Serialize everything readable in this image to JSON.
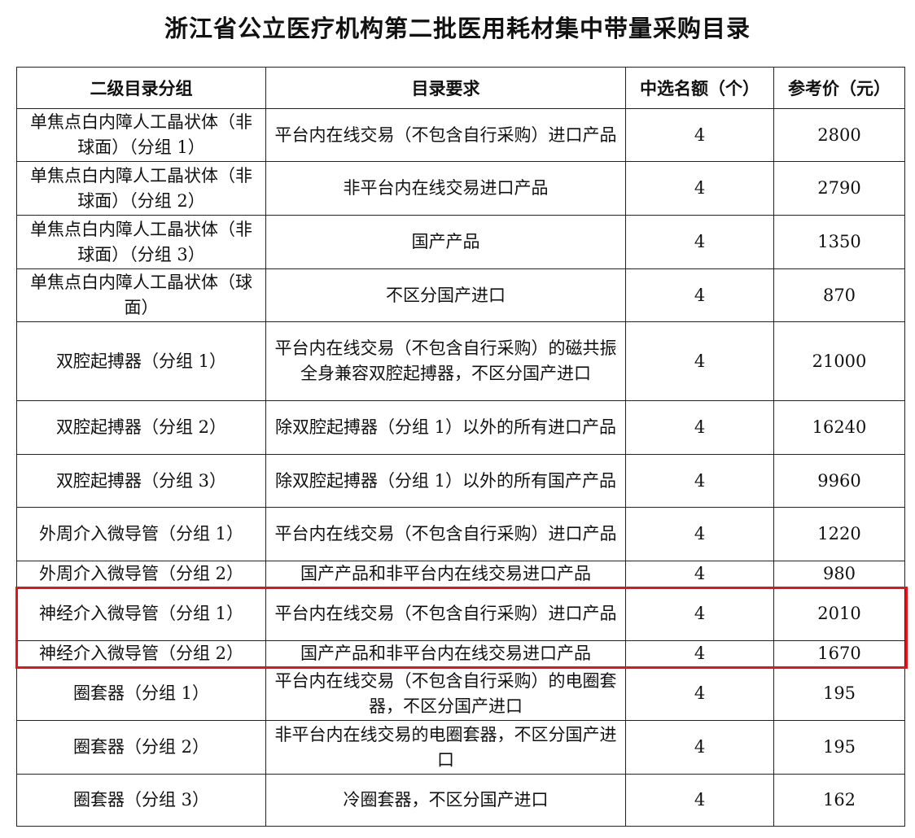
{
  "title": "浙江省公立医疗机构第二批医用耗材集中带量采购目录",
  "table": {
    "headers": [
      "二级目录分组",
      "目录要求",
      "中选名额（个）",
      "参考价（元）"
    ],
    "rows": [
      [
        "单焦点白内障人工晶状体（非球面）（分组 1）",
        "平台内在线交易（不包含自行采购）进口产品",
        "4",
        "2800"
      ],
      [
        "单焦点白内障人工晶状体（非球面）（分组 2）",
        "非平台内在线交易进口产品",
        "4",
        "2790"
      ],
      [
        "单焦点白内障人工晶状体（非球面）（分组 3）",
        "国产产品",
        "4",
        "1350"
      ],
      [
        "单焦点白内障人工晶状体（球面）",
        "不区分国产进口",
        "4",
        "870"
      ],
      [
        "双腔起搏器（分组 1）",
        "平台内在线交易（不包含自行采购）的磁共振全身兼容双腔起搏器，不区分国产进口",
        "4",
        "21000"
      ],
      [
        "双腔起搏器（分组 2）",
        "除双腔起搏器（分组 1）以外的所有进口产品",
        "4",
        "16240"
      ],
      [
        "双腔起搏器（分组 3）",
        "除双腔起搏器（分组 1）以外的所有国产产品",
        "4",
        "9960"
      ],
      [
        "外周介入微导管（分组 1）",
        "平台内在线交易（不包含自行采购）进口产品",
        "4",
        "1220"
      ],
      [
        "外周介入微导管（分组 2）",
        "国产产品和非平台内在线交易进口产品",
        "4",
        "980"
      ],
      [
        "神经介入微导管（分组 1）",
        "平台内在线交易（不包含自行采购）进口产品",
        "4",
        "2010"
      ],
      [
        "神经介入微导管（分组 2）",
        "国产产品和非平台内在线交易进口产品",
        "4",
        "1670"
      ],
      [
        "圈套器（分组 1）",
        "平台内在线交易（不包含自行采购）的电圈套器，不区分国产进口",
        "4",
        "195"
      ],
      [
        "圈套器（分组 2）",
        "非平台内在线交易的电圈套器，不区分国产进口",
        "4",
        "195"
      ],
      [
        "圈套器（分组 3）",
        "冷圈套器，不区分国产进口",
        "4",
        "162"
      ]
    ]
  },
  "highlight_color": "#e8121a"
}
